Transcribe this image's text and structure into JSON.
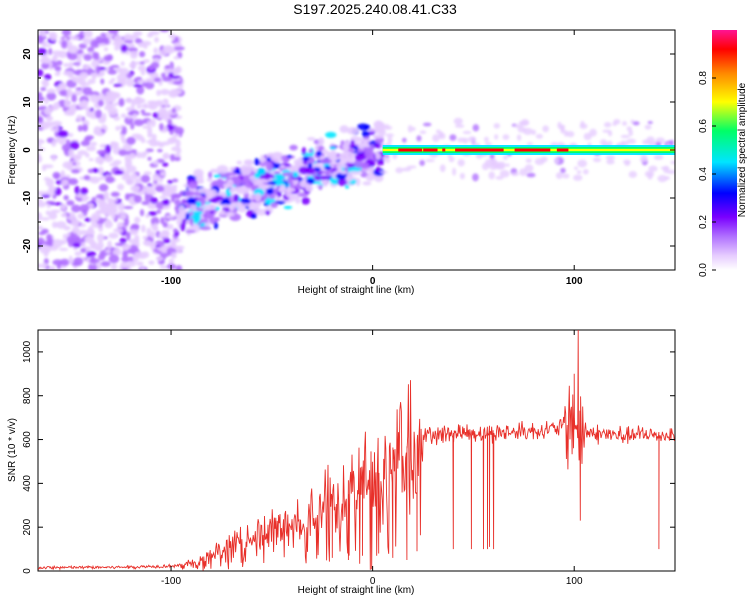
{
  "title": "S197.2025.240.08.41.C33",
  "colors": {
    "snr_line": "#e8302a",
    "colormap": [
      "#ffffff",
      "#e6ccff",
      "#b070ff",
      "#7a00ff",
      "#0000ff",
      "#00e5ff",
      "#00ff66",
      "#ffff00",
      "#ff8800",
      "#ff0000",
      "#ff1493"
    ]
  },
  "chart_data": [
    {
      "id": "spectrogram",
      "type": "heatmap",
      "xlabel": "Height of straight line (km)",
      "ylabel": "Frequency (Hz)",
      "xlim": [
        -166,
        150
      ],
      "ylim": [
        -25,
        25
      ],
      "xticks": [
        {
          "value": -100,
          "label": "-100"
        },
        {
          "value": 0,
          "label": "0"
        },
        {
          "value": 100,
          "label": "100"
        }
      ],
      "yticks": [
        {
          "value": 20,
          "label": "20"
        },
        {
          "value": 10,
          "label": "10"
        },
        {
          "value": 0,
          "label": "0"
        },
        {
          "value": -10,
          "label": "-10"
        },
        {
          "value": -20,
          "label": "-20"
        }
      ],
      "colorbar": {
        "label": "Normalized spectral amplitude",
        "range": [
          0,
          1
        ],
        "ticks": [
          {
            "value": 0.0,
            "label": "0.0"
          },
          {
            "value": 0.2,
            "label": "0.2"
          },
          {
            "value": 0.4,
            "label": "0.4"
          },
          {
            "value": 0.6,
            "label": "0.6"
          },
          {
            "value": 0.8,
            "label": "0.8"
          }
        ]
      },
      "description_features": {
        "noise_region_x": [
          -166,
          -95
        ],
        "transition_x": [
          -95,
          5
        ],
        "stable_line_x": [
          5,
          150
        ],
        "stable_line_frequency_hz": 0
      }
    },
    {
      "id": "snr",
      "type": "line",
      "xlabel": "Height of straight line (km)",
      "ylabel": "SNR (10 * v/v)",
      "xlim": [
        -166,
        150
      ],
      "ylim": [
        0,
        1100
      ],
      "xticks": [
        {
          "value": -100,
          "label": "-100"
        },
        {
          "value": 0,
          "label": "0"
        },
        {
          "value": 100,
          "label": "100"
        }
      ],
      "yticks": [
        {
          "value": 0,
          "label": "0"
        },
        {
          "value": 200,
          "label": "200"
        },
        {
          "value": 400,
          "label": "400"
        },
        {
          "value": 600,
          "label": "600"
        },
        {
          "value": 800,
          "label": "800"
        },
        {
          "value": 1000,
          "label": "1000"
        }
      ],
      "trend_x": [
        -166,
        -120,
        -95,
        -85,
        -70,
        -55,
        -40,
        -25,
        -10,
        0,
        10,
        20,
        25,
        40,
        60,
        80,
        90,
        95,
        100,
        103,
        105,
        120,
        150
      ],
      "trend_y": [
        15,
        18,
        25,
        50,
        120,
        170,
        230,
        290,
        360,
        420,
        510,
        580,
        620,
        630,
        630,
        640,
        650,
        660,
        700,
        620,
        630,
        620,
        620
      ],
      "dropouts": [
        {
          "x": -20,
          "y": 60
        },
        {
          "x": -12,
          "y": 50
        },
        {
          "x": -5,
          "y": 70
        },
        {
          "x": 3,
          "y": 80
        },
        {
          "x": 10,
          "y": 60
        },
        {
          "x": 17,
          "y": 50
        },
        {
          "x": 22,
          "y": 90
        },
        {
          "x": 40,
          "y": 100
        },
        {
          "x": 49,
          "y": 100
        },
        {
          "x": 55,
          "y": 100
        },
        {
          "x": 57,
          "y": 100
        },
        {
          "x": 58,
          "y": 110
        },
        {
          "x": 60,
          "y": 100
        },
        {
          "x": 103,
          "y": 230
        },
        {
          "x": 142,
          "y": 100
        }
      ],
      "spikes": [
        {
          "x": 100,
          "y": 900
        },
        {
          "x": 102,
          "y": 1100
        }
      ]
    }
  ]
}
